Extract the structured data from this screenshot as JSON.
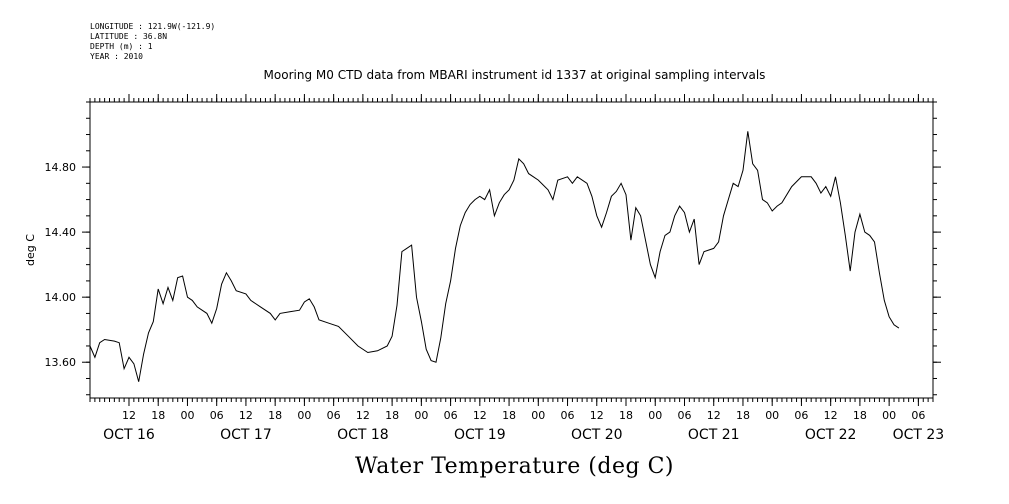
{
  "header": {
    "meta_lines": [
      "LONGITUDE : 121.9W(-121.9)",
      "LATITUDE : 36.8N",
      "DEPTH (m) : 1",
      "YEAR : 2010"
    ],
    "title": "Mooring M0 CTD data from MBARI instrument id 1337 at original sampling intervals"
  },
  "chart_data": {
    "type": "line",
    "title": "Mooring M0 CTD data from MBARI instrument id 1337 at original sampling intervals",
    "xlabel": "Water Temperature (deg C)",
    "ylabel": "deg C",
    "ylim": [
      13.38,
      15.2
    ],
    "yticks": [
      13.6,
      14.0,
      14.4,
      14.8
    ],
    "ytick_labels": [
      "13.60",
      "14.00",
      "14.40",
      "14.80"
    ],
    "xlim_hours": [
      "2010-10-16 04:00",
      "2010-10-23 09:00"
    ],
    "hour_tick_labels": [
      {
        "t": "2010-10-16 12:00",
        "label": "12"
      },
      {
        "t": "2010-10-16 18:00",
        "label": "18"
      },
      {
        "t": "2010-10-17 00:00",
        "label": "00"
      },
      {
        "t": "2010-10-17 06:00",
        "label": "06"
      },
      {
        "t": "2010-10-17 12:00",
        "label": "12"
      },
      {
        "t": "2010-10-17 18:00",
        "label": "18"
      },
      {
        "t": "2010-10-18 00:00",
        "label": "00"
      },
      {
        "t": "2010-10-18 06:00",
        "label": "06"
      },
      {
        "t": "2010-10-18 12:00",
        "label": "12"
      },
      {
        "t": "2010-10-18 18:00",
        "label": "18"
      },
      {
        "t": "2010-10-19 00:00",
        "label": "00"
      },
      {
        "t": "2010-10-19 06:00",
        "label": "06"
      },
      {
        "t": "2010-10-19 12:00",
        "label": "12"
      },
      {
        "t": "2010-10-19 18:00",
        "label": "18"
      },
      {
        "t": "2010-10-20 00:00",
        "label": "00"
      },
      {
        "t": "2010-10-20 06:00",
        "label": "06"
      },
      {
        "t": "2010-10-20 12:00",
        "label": "12"
      },
      {
        "t": "2010-10-20 18:00",
        "label": "18"
      },
      {
        "t": "2010-10-21 00:00",
        "label": "00"
      },
      {
        "t": "2010-10-21 06:00",
        "label": "06"
      },
      {
        "t": "2010-10-21 12:00",
        "label": "12"
      },
      {
        "t": "2010-10-21 18:00",
        "label": "18"
      },
      {
        "t": "2010-10-22 00:00",
        "label": "00"
      },
      {
        "t": "2010-10-22 06:00",
        "label": "06"
      },
      {
        "t": "2010-10-22 12:00",
        "label": "12"
      },
      {
        "t": "2010-10-22 18:00",
        "label": "18"
      },
      {
        "t": "2010-10-23 00:00",
        "label": "00"
      },
      {
        "t": "2010-10-23 06:00",
        "label": "06"
      }
    ],
    "day_labels": [
      {
        "t": "2010-10-16 12:00",
        "label": "OCT 16"
      },
      {
        "t": "2010-10-17 12:00",
        "label": "OCT 17"
      },
      {
        "t": "2010-10-18 12:00",
        "label": "OCT 18"
      },
      {
        "t": "2010-10-19 12:00",
        "label": "OCT 19"
      },
      {
        "t": "2010-10-20 12:00",
        "label": "OCT 20"
      },
      {
        "t": "2010-10-21 12:00",
        "label": "OCT 21"
      },
      {
        "t": "2010-10-22 12:00",
        "label": "OCT 22"
      },
      {
        "t": "2010-10-23 06:00",
        "label": "OCT 23"
      }
    ],
    "series": [
      {
        "color": "#000000",
        "points": [
          [
            "2010-10-16 04:00",
            13.7
          ],
          [
            "2010-10-16 05:00",
            13.63
          ],
          [
            "2010-10-16 06:00",
            13.72
          ],
          [
            "2010-10-16 07:00",
            13.74
          ],
          [
            "2010-10-16 09:00",
            13.73
          ],
          [
            "2010-10-16 10:00",
            13.72
          ],
          [
            "2010-10-16 11:00",
            13.56
          ],
          [
            "2010-10-16 12:00",
            13.63
          ],
          [
            "2010-10-16 13:00",
            13.59
          ],
          [
            "2010-10-16 14:00",
            13.48
          ],
          [
            "2010-10-16 15:00",
            13.65
          ],
          [
            "2010-10-16 16:00",
            13.78
          ],
          [
            "2010-10-16 17:00",
            13.85
          ],
          [
            "2010-10-16 18:00",
            14.05
          ],
          [
            "2010-10-16 19:00",
            13.96
          ],
          [
            "2010-10-16 20:00",
            14.06
          ],
          [
            "2010-10-16 21:00",
            13.98
          ],
          [
            "2010-10-16 22:00",
            14.12
          ],
          [
            "2010-10-16 23:00",
            14.13
          ],
          [
            "2010-10-17 00:00",
            14.0
          ],
          [
            "2010-10-17 01:00",
            13.98
          ],
          [
            "2010-10-17 02:00",
            13.94
          ],
          [
            "2010-10-17 03:00",
            13.92
          ],
          [
            "2010-10-17 04:00",
            13.9
          ],
          [
            "2010-10-17 05:00",
            13.84
          ],
          [
            "2010-10-17 06:00",
            13.93
          ],
          [
            "2010-10-17 07:00",
            14.08
          ],
          [
            "2010-10-17 08:00",
            14.15
          ],
          [
            "2010-10-17 09:00",
            14.1
          ],
          [
            "2010-10-17 10:00",
            14.04
          ],
          [
            "2010-10-17 12:00",
            14.02
          ],
          [
            "2010-10-17 13:00",
            13.98
          ],
          [
            "2010-10-17 15:00",
            13.94
          ],
          [
            "2010-10-17 17:00",
            13.9
          ],
          [
            "2010-10-17 18:00",
            13.86
          ],
          [
            "2010-10-17 19:00",
            13.9
          ],
          [
            "2010-10-17 21:00",
            13.91
          ],
          [
            "2010-10-17 23:00",
            13.92
          ],
          [
            "2010-10-18 00:00",
            13.97
          ],
          [
            "2010-10-18 01:00",
            13.99
          ],
          [
            "2010-10-18 02:00",
            13.94
          ],
          [
            "2010-10-18 03:00",
            13.86
          ],
          [
            "2010-10-18 05:00",
            13.84
          ],
          [
            "2010-10-18 07:00",
            13.82
          ],
          [
            "2010-10-18 09:00",
            13.76
          ],
          [
            "2010-10-18 11:00",
            13.7
          ],
          [
            "2010-10-18 13:00",
            13.66
          ],
          [
            "2010-10-18 15:00",
            13.67
          ],
          [
            "2010-10-18 17:00",
            13.7
          ],
          [
            "2010-10-18 18:00",
            13.76
          ],
          [
            "2010-10-18 19:00",
            13.95
          ],
          [
            "2010-10-18 20:00",
            14.28
          ],
          [
            "2010-10-18 21:00",
            14.3
          ],
          [
            "2010-10-18 22:00",
            14.32
          ],
          [
            "2010-10-18 23:00",
            14.0
          ],
          [
            "2010-10-19 00:00",
            13.85
          ],
          [
            "2010-10-19 01:00",
            13.68
          ],
          [
            "2010-10-19 02:00",
            13.61
          ],
          [
            "2010-10-19 03:00",
            13.6
          ],
          [
            "2010-10-19 04:00",
            13.75
          ],
          [
            "2010-10-19 05:00",
            13.96
          ],
          [
            "2010-10-19 06:00",
            14.1
          ],
          [
            "2010-10-19 07:00",
            14.3
          ],
          [
            "2010-10-19 08:00",
            14.44
          ],
          [
            "2010-10-19 09:00",
            14.52
          ],
          [
            "2010-10-19 10:00",
            14.57
          ],
          [
            "2010-10-19 11:00",
            14.6
          ],
          [
            "2010-10-19 12:00",
            14.62
          ],
          [
            "2010-10-19 13:00",
            14.6
          ],
          [
            "2010-10-19 14:00",
            14.66
          ],
          [
            "2010-10-19 15:00",
            14.5
          ],
          [
            "2010-10-19 16:00",
            14.58
          ],
          [
            "2010-10-19 17:00",
            14.63
          ],
          [
            "2010-10-19 18:00",
            14.66
          ],
          [
            "2010-10-19 19:00",
            14.72
          ],
          [
            "2010-10-19 20:00",
            14.85
          ],
          [
            "2010-10-19 21:00",
            14.82
          ],
          [
            "2010-10-19 22:00",
            14.76
          ],
          [
            "2010-10-20 00:00",
            14.72
          ],
          [
            "2010-10-20 02:00",
            14.66
          ],
          [
            "2010-10-20 03:00",
            14.6
          ],
          [
            "2010-10-20 04:00",
            14.72
          ],
          [
            "2010-10-20 06:00",
            14.74
          ],
          [
            "2010-10-20 07:00",
            14.7
          ],
          [
            "2010-10-20 08:00",
            14.74
          ],
          [
            "2010-10-20 10:00",
            14.7
          ],
          [
            "2010-10-20 11:00",
            14.62
          ],
          [
            "2010-10-20 12:00",
            14.5
          ],
          [
            "2010-10-20 13:00",
            14.43
          ],
          [
            "2010-10-20 14:00",
            14.52
          ],
          [
            "2010-10-20 15:00",
            14.62
          ],
          [
            "2010-10-20 16:00",
            14.65
          ],
          [
            "2010-10-20 17:00",
            14.7
          ],
          [
            "2010-10-20 18:00",
            14.63
          ],
          [
            "2010-10-20 19:00",
            14.35
          ],
          [
            "2010-10-20 20:00",
            14.55
          ],
          [
            "2010-10-20 21:00",
            14.5
          ],
          [
            "2010-10-20 22:00",
            14.35
          ],
          [
            "2010-10-20 23:00",
            14.2
          ],
          [
            "2010-10-21 00:00",
            14.12
          ],
          [
            "2010-10-21 01:00",
            14.28
          ],
          [
            "2010-10-21 02:00",
            14.38
          ],
          [
            "2010-10-21 03:00",
            14.4
          ],
          [
            "2010-10-21 04:00",
            14.5
          ],
          [
            "2010-10-21 05:00",
            14.56
          ],
          [
            "2010-10-21 06:00",
            14.52
          ],
          [
            "2010-10-21 07:00",
            14.4
          ],
          [
            "2010-10-21 08:00",
            14.48
          ],
          [
            "2010-10-21 09:00",
            14.2
          ],
          [
            "2010-10-21 10:00",
            14.28
          ],
          [
            "2010-10-21 12:00",
            14.3
          ],
          [
            "2010-10-21 13:00",
            14.34
          ],
          [
            "2010-10-21 14:00",
            14.5
          ],
          [
            "2010-10-21 15:00",
            14.6
          ],
          [
            "2010-10-21 16:00",
            14.7
          ],
          [
            "2010-10-21 17:00",
            14.68
          ],
          [
            "2010-10-21 18:00",
            14.78
          ],
          [
            "2010-10-21 19:00",
            15.02
          ],
          [
            "2010-10-21 20:00",
            14.82
          ],
          [
            "2010-10-21 21:00",
            14.78
          ],
          [
            "2010-10-21 22:00",
            14.6
          ],
          [
            "2010-10-21 23:00",
            14.58
          ],
          [
            "2010-10-22 00:00",
            14.53
          ],
          [
            "2010-10-22 01:00",
            14.56
          ],
          [
            "2010-10-22 02:00",
            14.58
          ],
          [
            "2010-10-22 04:00",
            14.68
          ],
          [
            "2010-10-22 06:00",
            14.74
          ],
          [
            "2010-10-22 08:00",
            14.74
          ],
          [
            "2010-10-22 09:00",
            14.7
          ],
          [
            "2010-10-22 10:00",
            14.64
          ],
          [
            "2010-10-22 11:00",
            14.68
          ],
          [
            "2010-10-22 12:00",
            14.62
          ],
          [
            "2010-10-22 13:00",
            14.74
          ],
          [
            "2010-10-22 14:00",
            14.58
          ],
          [
            "2010-10-22 15:00",
            14.38
          ],
          [
            "2010-10-22 16:00",
            14.16
          ],
          [
            "2010-10-22 17:00",
            14.4
          ],
          [
            "2010-10-22 18:00",
            14.51
          ],
          [
            "2010-10-22 19:00",
            14.4
          ],
          [
            "2010-10-22 20:00",
            14.38
          ],
          [
            "2010-10-22 21:00",
            14.34
          ],
          [
            "2010-10-22 22:00",
            14.15
          ],
          [
            "2010-10-22 23:00",
            13.98
          ],
          [
            "2010-10-23 00:00",
            13.88
          ],
          [
            "2010-10-23 01:00",
            13.83
          ],
          [
            "2010-10-23 02:00",
            13.81
          ]
        ]
      }
    ]
  }
}
